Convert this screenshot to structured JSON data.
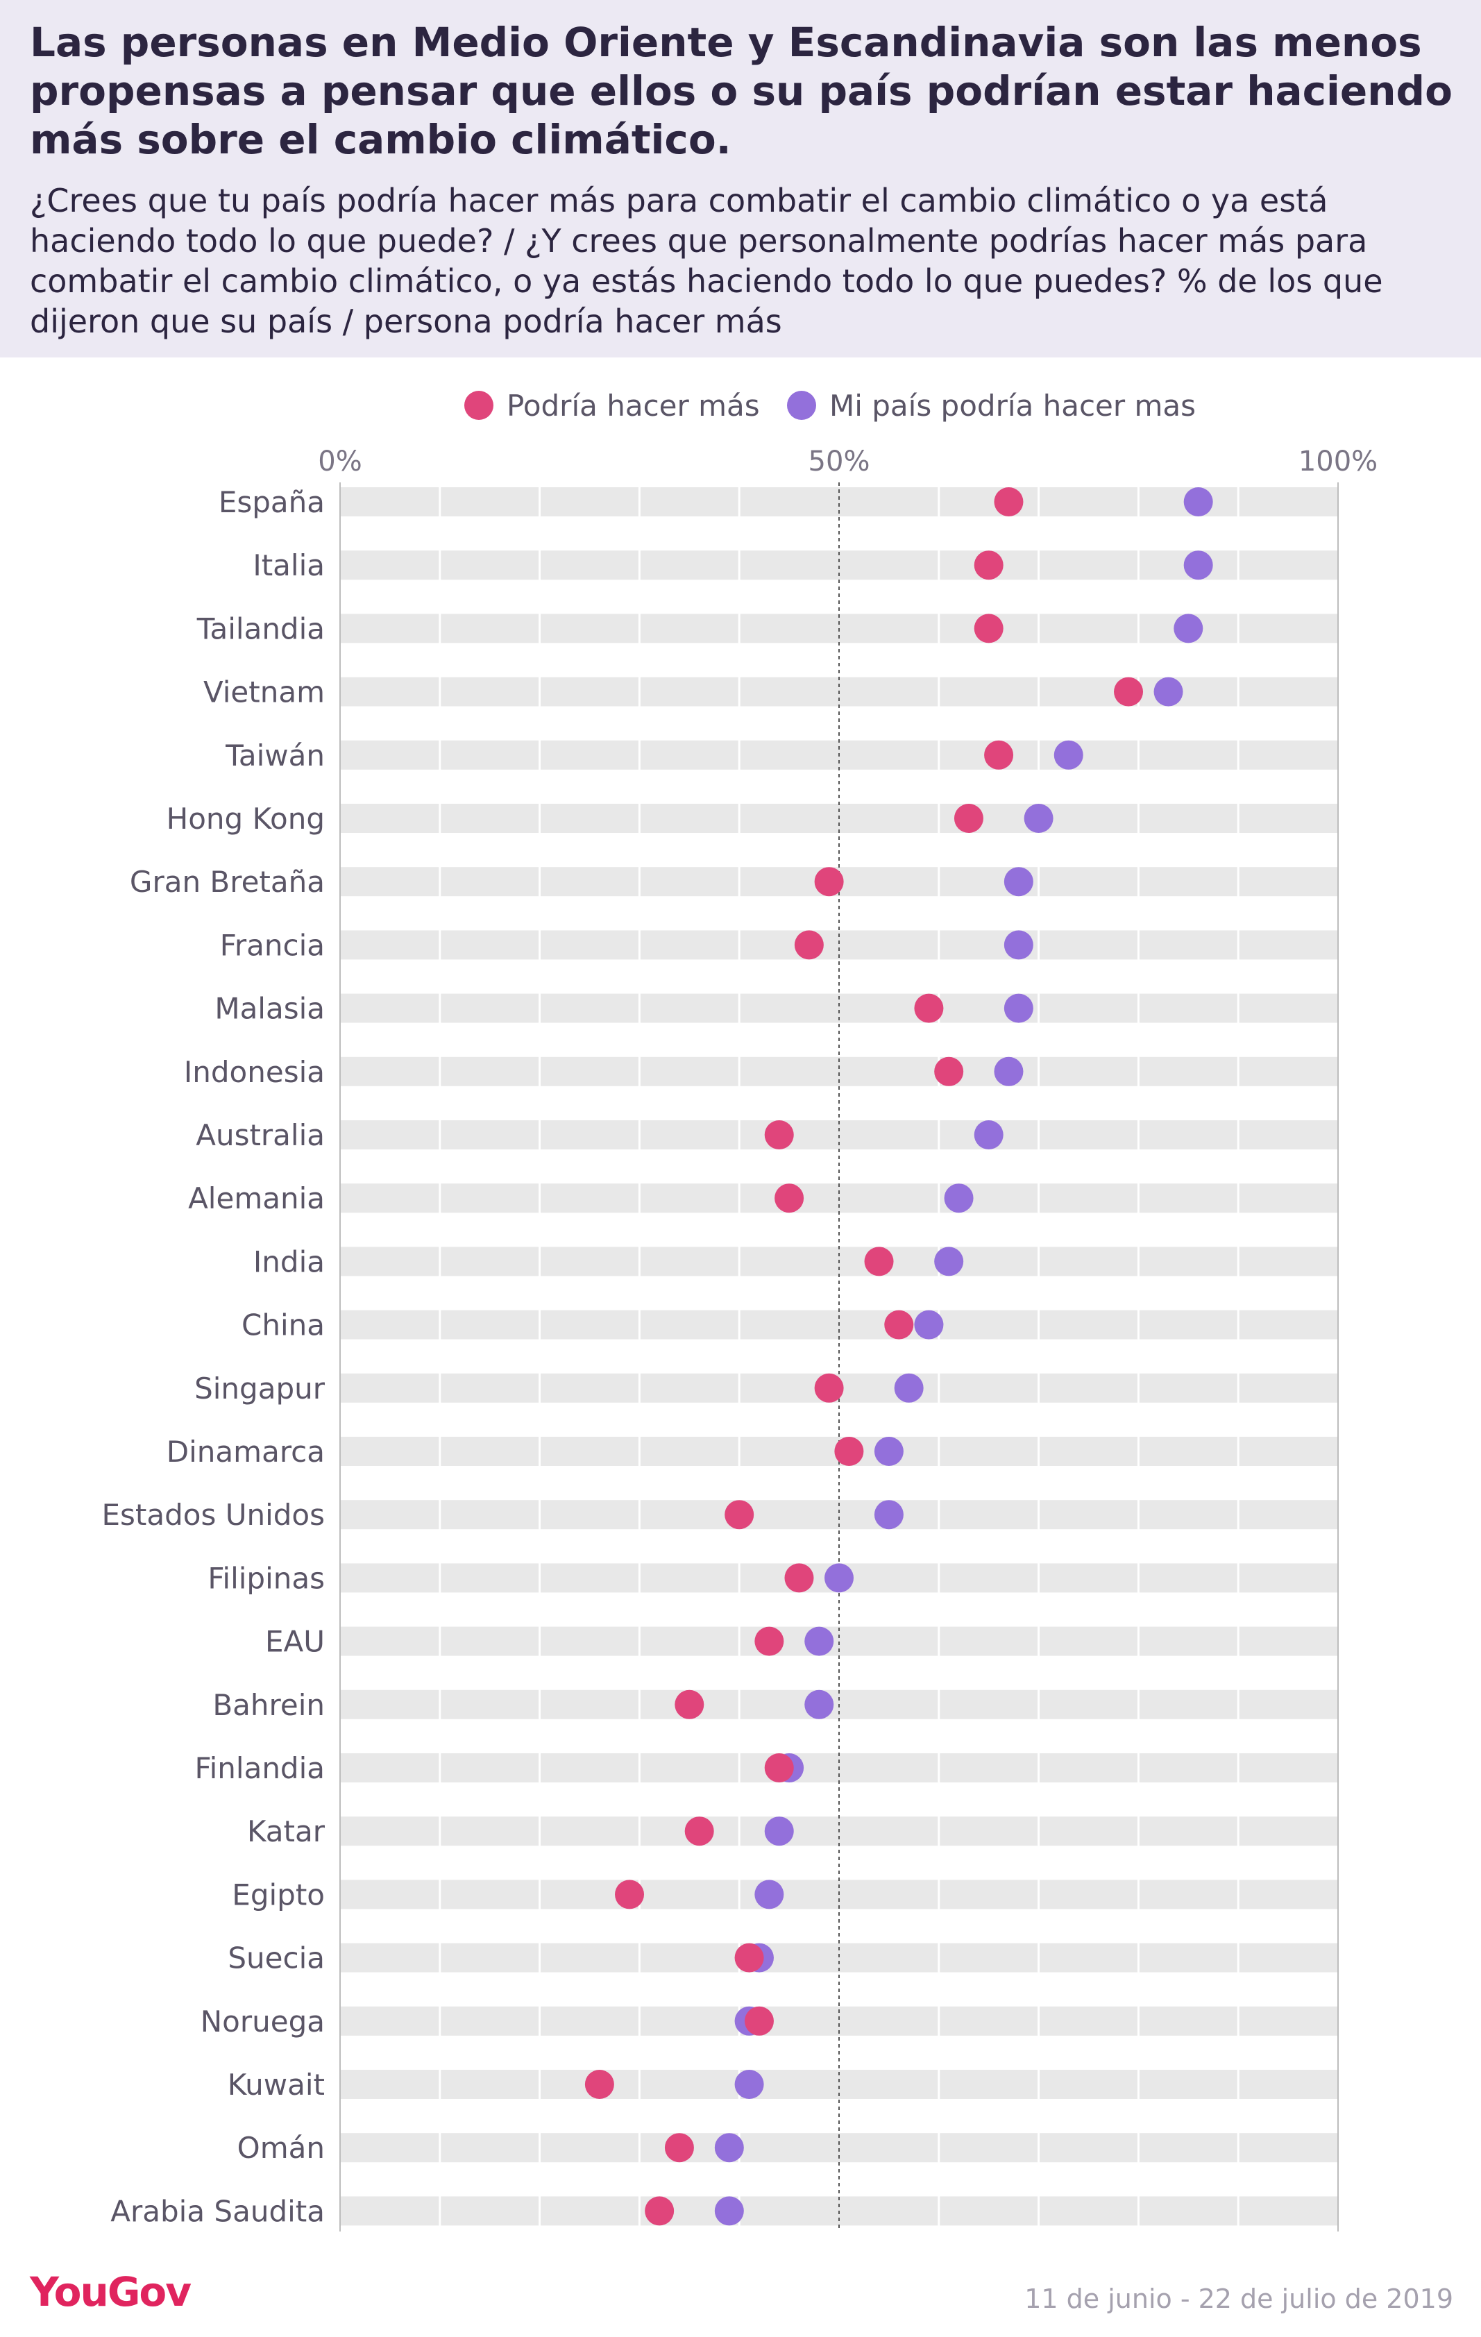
{
  "title": "Las personas en Medio Oriente y Escandinavia son las menos propensas a pensar que ellos o su país podrían estar haciendo más sobre el cambio climático.",
  "subtitle": "¿Crees que tu país podría hacer más para combatir el cambio climático o ya está haciendo todo lo que puede? / ¿Y crees que personalmente podrías hacer más para combatir el cambio climático, o ya estás haciendo todo lo que puedes? % de los que dijeron que su país / persona podría hacer más",
  "footer": {
    "logo": "YouGov",
    "dates": "11 de junio - 22 de julio de 2019"
  },
  "colors": {
    "personal": "#e0457b",
    "country": "#9370db",
    "track": "#e8e8e8",
    "reference_line": "#555555"
  },
  "chart_data": {
    "type": "scatter",
    "orientation": "horizontal-dot-plot",
    "xlim": [
      0,
      100
    ],
    "ticks": [
      {
        "value": 0,
        "label": "0%"
      },
      {
        "value": 50,
        "label": "50%"
      },
      {
        "value": 100,
        "label": "100%"
      }
    ],
    "reference_line": 50,
    "legend_position": "top",
    "categories": [
      "España",
      "Italia",
      "Tailandia",
      "Vietnam",
      "Taiwán",
      "Hong Kong",
      "Gran Bretaña",
      "Francia",
      "Malasia",
      "Indonesia",
      "Australia",
      "Alemania",
      "India",
      "China",
      "Singapur",
      "Dinamarca",
      "Estados Unidos",
      "Filipinas",
      "EAU",
      "Bahrein",
      "Finlandia",
      "Katar",
      "Egipto",
      "Suecia",
      "Noruega",
      "Kuwait",
      "Omán",
      "Arabia Saudita"
    ],
    "series": [
      {
        "name": "Mi país podría hacer mas",
        "key": "country",
        "values": [
          86,
          86,
          85,
          83,
          73,
          70,
          68,
          68,
          68,
          67,
          65,
          62,
          61,
          59,
          57,
          55,
          55,
          50,
          48,
          48,
          45,
          44,
          43,
          42,
          41,
          41,
          39,
          39
        ]
      },
      {
        "name": "Podría hacer más",
        "key": "personal",
        "values": [
          67,
          65,
          65,
          79,
          66,
          63,
          49,
          47,
          59,
          61,
          44,
          45,
          54,
          56,
          49,
          51,
          40,
          46,
          43,
          35,
          44,
          36,
          29,
          41,
          42,
          26,
          34,
          32
        ]
      }
    ]
  }
}
